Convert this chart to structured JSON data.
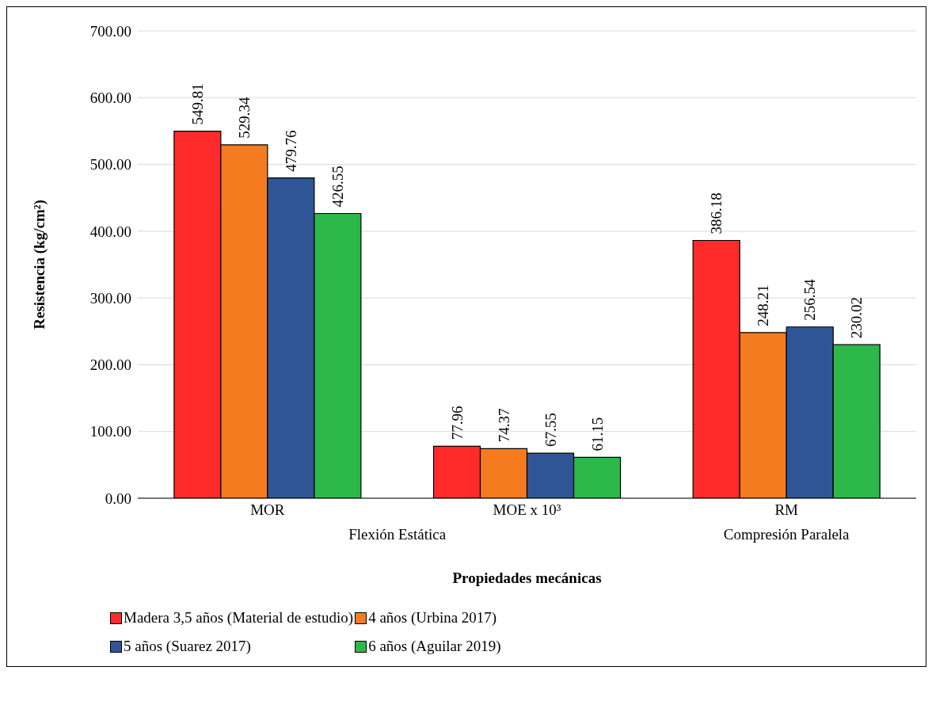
{
  "chart_data": {
    "type": "bar",
    "xlabel": "Propiedades mecánicas",
    "ylabel": "Resistencia (kg/cm²)",
    "categories": [
      "MOR",
      "MOE x 10³",
      "RM"
    ],
    "annotations": [
      "Flexión Estática",
      "Compresión Paralela"
    ],
    "series": [
      {
        "name": "Madera 3,5 años (Material de estudio)",
        "color": "#ff2a2a",
        "values": [
          549.81,
          77.96,
          386.18
        ]
      },
      {
        "name": "4 años (Urbina 2017)",
        "color": "#f47b20",
        "values": [
          529.34,
          74.37,
          248.21
        ]
      },
      {
        "name": "5 años (Suarez 2017)",
        "color": "#2f5597",
        "values": [
          479.76,
          67.55,
          256.54
        ]
      },
      {
        "name": "6 años (Aguilar 2019)",
        "color": "#2db84a",
        "values": [
          426.55,
          61.15,
          230.02
        ]
      }
    ],
    "ylim": [
      0,
      700
    ],
    "yticks": [
      {
        "value": 0,
        "label": "0.00"
      },
      {
        "value": 100,
        "label": "100.00"
      },
      {
        "value": 200,
        "label": "200.00"
      },
      {
        "value": 300,
        "label": "300.00"
      },
      {
        "value": 400,
        "label": "400.00"
      },
      {
        "value": 500,
        "label": "500.00"
      },
      {
        "value": 600,
        "label": "600.00"
      },
      {
        "value": 700,
        "label": "700.00"
      }
    ],
    "grid": "y",
    "legend": "bottom",
    "data_labels": true
  }
}
